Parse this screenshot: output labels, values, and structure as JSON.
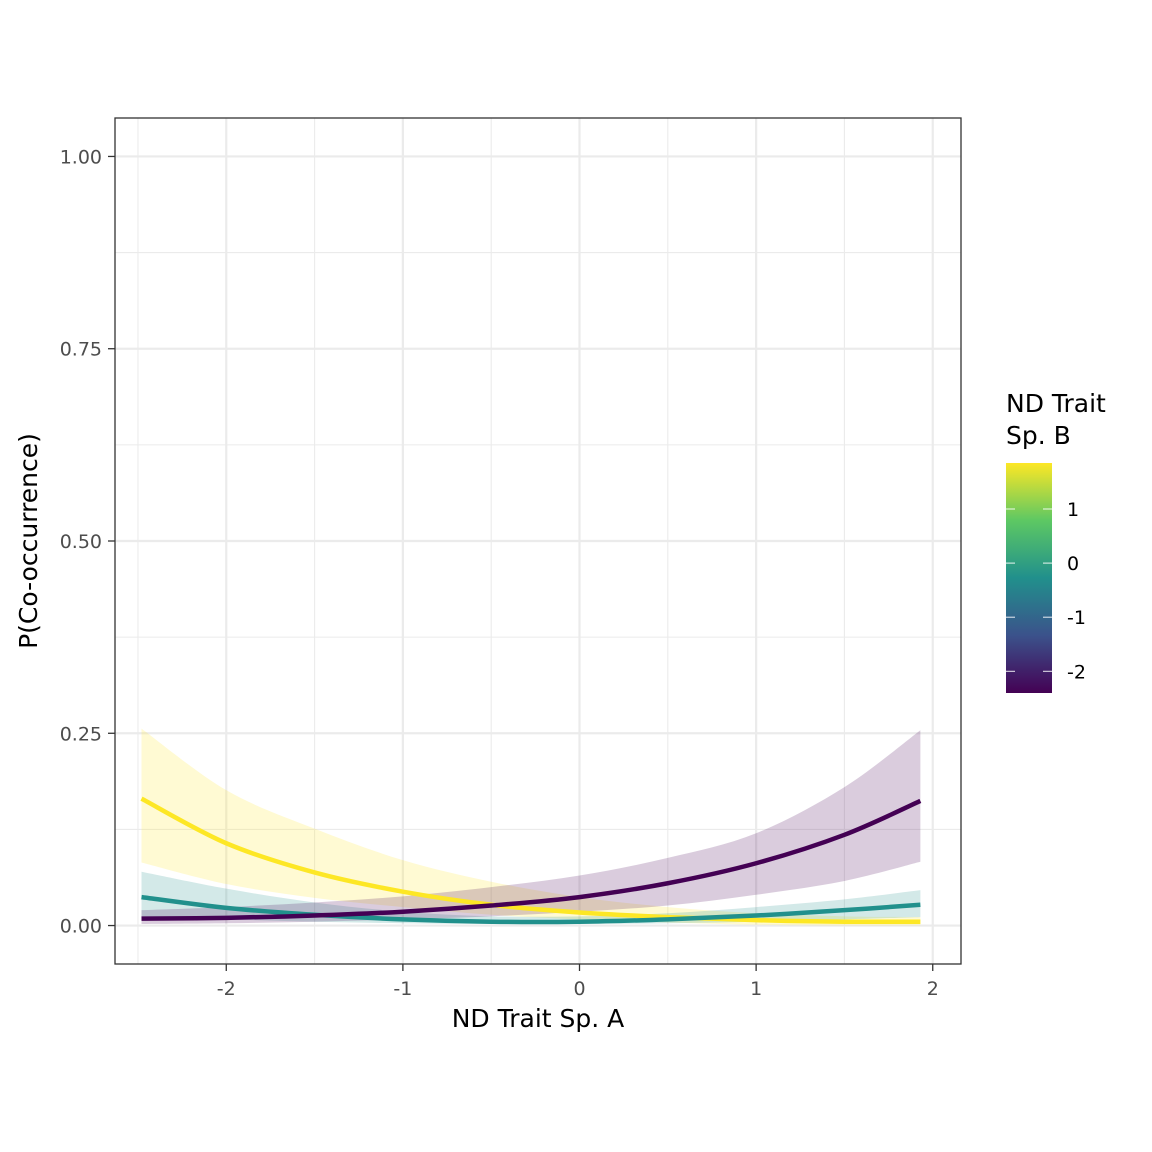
{
  "chart_data": {
    "type": "line",
    "title": "",
    "xlabel": "ND Trait Sp. A",
    "ylabel": "P(Co-occurrence)",
    "xlim": [
      -2.63,
      2.16
    ],
    "ylim": [
      -0.05,
      1.05
    ],
    "x_ticks": [
      -2,
      -1,
      0,
      1,
      2
    ],
    "x_tick_labels": [
      "-2",
      "-1",
      "0",
      "1",
      "2"
    ],
    "y_ticks": [
      0,
      0.25,
      0.5,
      0.75,
      1
    ],
    "y_tick_labels": [
      "0.00",
      "0.25",
      "0.50",
      "0.75",
      "1.00"
    ],
    "grid": true,
    "legend": {
      "title_lines": [
        "ND Trait",
        "Sp. B"
      ],
      "placement": "right",
      "type": "colorbar",
      "range": [
        -2.4,
        1.85
      ],
      "ticks": [
        -2,
        -1,
        0,
        1
      ],
      "tick_labels": [
        "-2",
        "-1",
        "0",
        "1"
      ],
      "colors": [
        "#440154",
        "#3b528b",
        "#21908c",
        "#5dc863",
        "#fde725"
      ]
    },
    "x": [
      -2.48,
      -2.0,
      -1.5,
      -1.0,
      -0.5,
      0.0,
      0.5,
      1.0,
      1.5,
      1.93
    ],
    "series": [
      {
        "color": "#fde725",
        "band_color": "#fde725",
        "values": [
          0.165,
          0.107,
          0.069,
          0.044,
          0.027,
          0.017,
          0.011,
          0.007,
          0.005,
          0.005
        ],
        "lower": [
          0.082,
          0.054,
          0.036,
          0.024,
          0.014,
          0.008,
          0.004,
          0.001,
          0.0,
          0.0
        ],
        "upper": [
          0.256,
          0.176,
          0.126,
          0.085,
          0.057,
          0.037,
          0.024,
          0.016,
          0.012,
          0.011
        ]
      },
      {
        "color": "#21908c",
        "band_color": "#21908c",
        "values": [
          0.037,
          0.023,
          0.014,
          0.008,
          0.005,
          0.005,
          0.008,
          0.013,
          0.02,
          0.027
        ],
        "lower": [
          0.011,
          0.008,
          0.005,
          0.003,
          0.002,
          0.002,
          0.003,
          0.005,
          0.008,
          0.011
        ],
        "upper": [
          0.07,
          0.048,
          0.03,
          0.018,
          0.012,
          0.012,
          0.016,
          0.024,
          0.034,
          0.046
        ]
      },
      {
        "color": "#440154",
        "band_color": "#440154",
        "values": [
          0.009,
          0.01,
          0.013,
          0.018,
          0.026,
          0.037,
          0.055,
          0.081,
          0.118,
          0.162
        ],
        "lower": [
          0.002,
          0.003,
          0.005,
          0.008,
          0.012,
          0.018,
          0.026,
          0.04,
          0.058,
          0.083
        ],
        "upper": [
          0.02,
          0.024,
          0.03,
          0.038,
          0.05,
          0.065,
          0.088,
          0.12,
          0.18,
          0.254
        ]
      }
    ]
  }
}
